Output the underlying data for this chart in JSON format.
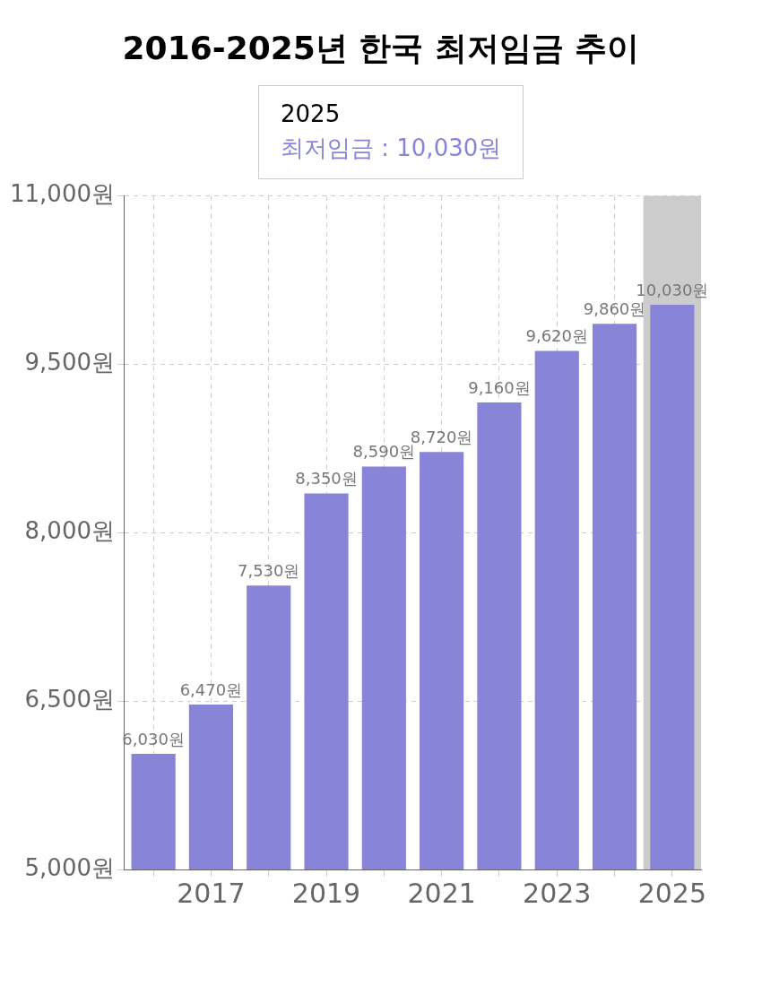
{
  "chart_data": {
    "type": "bar",
    "title": "2016-2025년 한국 최저임금 추이",
    "categories": [
      null,
      "2017",
      null,
      "2019",
      null,
      "2021",
      null,
      "2023",
      null,
      "2025"
    ],
    "series": [
      {
        "name": "최저임금",
        "color": "#8884d8",
        "values": [
          6030,
          6470,
          7530,
          8350,
          8590,
          8720,
          9160,
          9620,
          9860,
          10030
        ],
        "value_labels": [
          "6,030원",
          "6,470원",
          "7,530원",
          "8,350원",
          "8,590원",
          "8,720원",
          "9,160원",
          "9,620원",
          "9,860원",
          "10,030원"
        ]
      }
    ],
    "ylim": [
      5000,
      11000
    ],
    "yticks": [
      {
        "value": 5000,
        "label": "5,000원"
      },
      {
        "value": 6500,
        "label": "6,500원"
      },
      {
        "value": 8000,
        "label": "8,000원"
      },
      {
        "value": 9500,
        "label": "9,500원"
      },
      {
        "value": 11000,
        "label": "11,000원"
      }
    ],
    "grid": true,
    "legend": false,
    "bands": [
      {
        "axis": "x",
        "from": "2025",
        "to": "2025",
        "color": "#cccccc"
      }
    ],
    "annotations": [
      "2025",
      ": 10,030원"
    ]
  }
}
